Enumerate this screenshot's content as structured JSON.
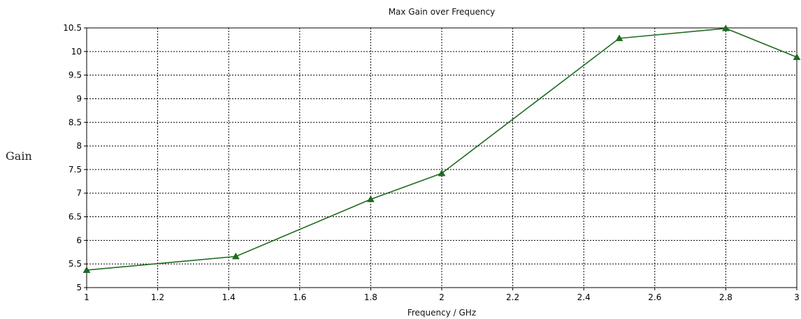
{
  "chart_data": {
    "type": "line",
    "title": "Max Gain over Frequency",
    "xlabel": "Frequency / GHz",
    "ylabel": "Gain",
    "xlim": [
      1,
      3
    ],
    "ylim": [
      5,
      10.5
    ],
    "x_ticks": [
      "1",
      "1.2",
      "1.4",
      "1.6",
      "1.8",
      "2",
      "2.2",
      "2.4",
      "2.6",
      "2.8",
      "3"
    ],
    "y_ticks": [
      "5",
      "5.5",
      "6",
      "6.5",
      "7",
      "7.5",
      "8",
      "8.5",
      "9",
      "9.5",
      "10",
      "10.5"
    ],
    "grid": true,
    "series": [
      {
        "color": "#1f6b1f",
        "marker": "triangle",
        "x": [
          1.0,
          1.42,
          1.8,
          2.0,
          2.5,
          2.8,
          3.0
        ],
        "y": [
          5.37,
          5.66,
          6.87,
          7.42,
          10.28,
          10.49,
          9.88
        ]
      }
    ]
  }
}
